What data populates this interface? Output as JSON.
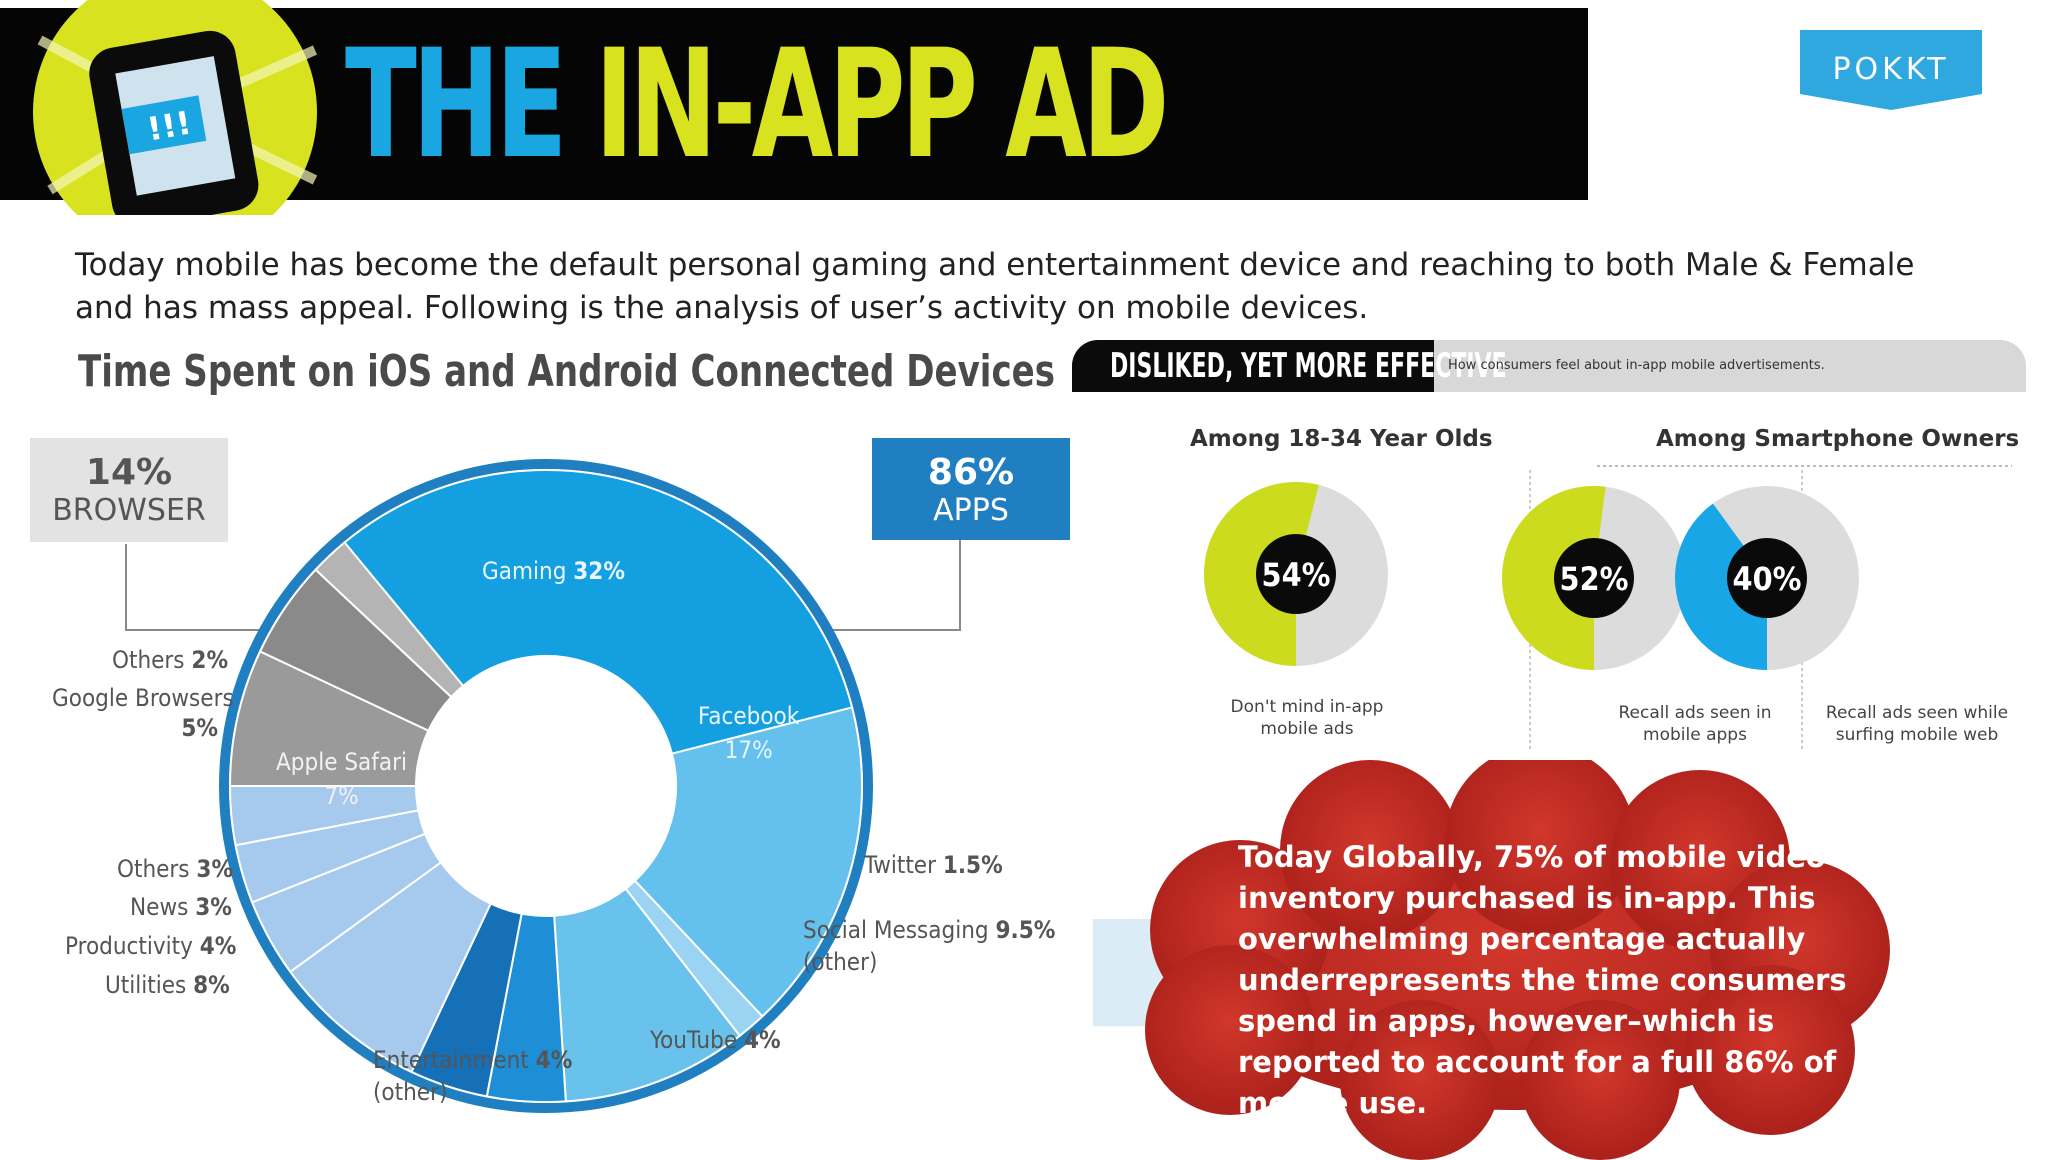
{
  "banner": {
    "title_part1": "THE",
    "title_part2": "IN-APP AD",
    "icon_text": "!!!",
    "logo_text": "POKKT",
    "colors": {
      "blue": "#1aa6e0",
      "yellow": "#d8e21e",
      "black": "#050505"
    }
  },
  "intro_text": "Today mobile has become the default personal gaming and entertainment device and reaching to both Male & Female and has mass appeal. Following is the analysis of user’s activity on mobile devices.",
  "left_chart_title": "Time Spent on iOS and Android Connected Devices",
  "right_header": {
    "title": "DISLIKED, YET MORE EFFECTIVE",
    "subtitle": "How consumers feel about in-app mobile advertisements."
  },
  "cloud_text": "Today Globally, 75% of mobile video ad inventory purchased is in-app. This overwhelming percentage actually underrepresents the time consumers spend in apps, however–which is reported to account for a full 86% of mobile use.",
  "chart_data": [
    {
      "type": "pie",
      "title": "Time Spent on iOS and Android Connected Devices",
      "groups": [
        {
          "label_pct": "14%",
          "label": "BROWSER",
          "value": 14,
          "color": "#e3e3e3"
        },
        {
          "label_pct": "86%",
          "label": "APPS",
          "value": 86,
          "color": "#1f7fc0"
        }
      ],
      "slices": [
        {
          "name": "Gaming",
          "pct": "32%",
          "value": 32,
          "color": "#149fe0",
          "group": "APPS"
        },
        {
          "name": "Facebook",
          "pct": "17%",
          "value": 17,
          "color": "#64c0ec",
          "group": "APPS"
        },
        {
          "name": "Twitter",
          "pct": "1.5%",
          "value": 1.5,
          "color": "#9ad4f2",
          "group": "APPS"
        },
        {
          "name": "Social Messaging",
          "pct": "9.5%",
          "extra": "(other)",
          "value": 9.5,
          "color": "#69c2ec",
          "group": "APPS"
        },
        {
          "name": "YouTube",
          "pct": "4%",
          "value": 4,
          "color": "#1e8fd6",
          "group": "APPS"
        },
        {
          "name": "Entertainment",
          "pct": "4%",
          "extra": "(other)",
          "value": 4,
          "color": "#1670b8",
          "group": "APPS"
        },
        {
          "name": "Utilities",
          "pct": "8%",
          "value": 8,
          "color": "#a6c9ee",
          "group": "APPS"
        },
        {
          "name": "Productivity",
          "pct": "4%",
          "value": 4,
          "color": "#a6c9ee",
          "group": "APPS"
        },
        {
          "name": "News",
          "pct": "3%",
          "value": 3,
          "color": "#a6c9ee",
          "group": "APPS"
        },
        {
          "name": "Others",
          "pct": "3%",
          "value": 3,
          "color": "#a6c9ee",
          "group": "APPS"
        },
        {
          "name": "Apple Safari",
          "pct": "7%",
          "value": 7,
          "color": "#9a9a9a",
          "group": "BROWSER"
        },
        {
          "name": "Google Browsers",
          "pct": "5%",
          "value": 5,
          "color": "#8a8a8a",
          "group": "BROWSER"
        },
        {
          "name": "Others",
          "pct": "2%",
          "value": 2,
          "color": "#b4b4b4",
          "group": "BROWSER"
        }
      ]
    },
    {
      "type": "pie",
      "group_title": "Among 18-34 Year Olds",
      "value": 54,
      "label": "54%",
      "caption": "Don't mind in-app mobile ads",
      "color": "#cddb1e"
    },
    {
      "type": "pie",
      "group_title": "Among Smartphone Owners",
      "value": 52,
      "label": "52%",
      "caption": "Recall ads seen in mobile apps",
      "color": "#cddb1e"
    },
    {
      "type": "pie",
      "group_title": "Among Smartphone Owners",
      "value": 40,
      "label": "40%",
      "caption": "Recall ads seen while surfing mobile web",
      "color": "#18a6e6"
    }
  ]
}
